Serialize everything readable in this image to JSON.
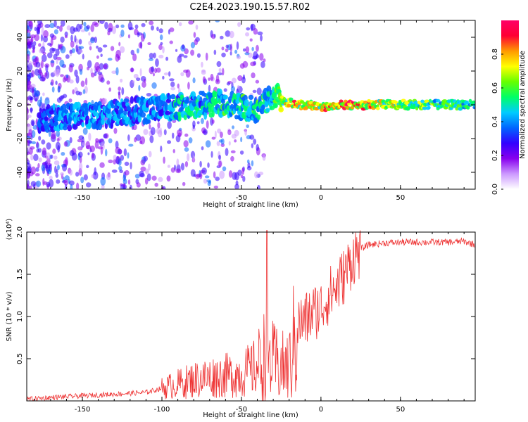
{
  "title": "C2E4.2023.190.15.57.R02",
  "chart_data": [
    {
      "type": "heatmap",
      "xlabel": "Height of straight line (km)",
      "ylabel": "Frequency (Hz)",
      "xlim": [
        -185,
        97
      ],
      "ylim": [
        -50,
        50
      ],
      "x_ticks": [
        -150,
        -100,
        -50,
        0,
        50
      ],
      "y_ticks": [
        -40,
        -20,
        0,
        20,
        40
      ],
      "colorbar": {
        "label": "Normalized spectral amplitude",
        "range": [
          0.0,
          1.0
        ],
        "ticks": [
          0.0,
          0.2,
          0.4,
          0.6,
          0.8
        ],
        "colors": [
          "#ffffff",
          "#cc99ff",
          "#8800ee",
          "#3300ff",
          "#0066ff",
          "#00ccff",
          "#00ff66",
          "#66ff00",
          "#ffff00",
          "#ff9900",
          "#ff0033",
          "#ff0066"
        ]
      },
      "series": [
        {
          "x": [
            -180,
            -160,
            -140,
            -120,
            -100,
            -80,
            -60,
            -40,
            -30,
            -20,
            -10,
            0,
            20,
            50,
            90
          ],
          "y": [
            -9,
            -7,
            -6,
            -4,
            -2,
            0,
            1,
            -3,
            5,
            1,
            0,
            -1,
            0,
            0,
            0
          ],
          "values": [
            0.35,
            0.45,
            0.45,
            0.45,
            0.45,
            0.5,
            0.55,
            0.55,
            0.55,
            0.85,
            0.8,
            0.8,
            0.9,
            0.7,
            0.6
          ]
        }
      ]
    },
    {
      "type": "line",
      "xlabel": "Height of straight line (km)",
      "ylabel": "SNR (10 * v/v)",
      "y_multiplier": "(x10⁴)",
      "xlim": [
        -185,
        97
      ],
      "ylim": [
        0,
        20000
      ],
      "x_ticks": [
        -150,
        -100,
        -50,
        0,
        50
      ],
      "y_ticks": [
        0.5,
        1.0,
        1.5,
        2.0
      ],
      "color": "#ee3333",
      "series": [
        {
          "x": [
            -185,
            -170,
            -150,
            -130,
            -110,
            -100,
            -90,
            -80,
            -70,
            -60,
            -50,
            -40,
            -35,
            -30,
            -25,
            -20,
            -15,
            -10,
            -5,
            0,
            5,
            10,
            15,
            20,
            25,
            30,
            40,
            50,
            60,
            70,
            80,
            90,
            97
          ],
          "y": [
            200,
            400,
            600,
            800,
            1000,
            1500,
            2000,
            2500,
            2800,
            3000,
            3200,
            4000,
            5500,
            4500,
            4000,
            4000,
            9000,
            9500,
            10500,
            11000,
            12500,
            13500,
            15000,
            17000,
            18000,
            18500,
            18700,
            18800,
            18800,
            18800,
            18800,
            18900,
            18500
          ]
        }
      ]
    }
  ]
}
